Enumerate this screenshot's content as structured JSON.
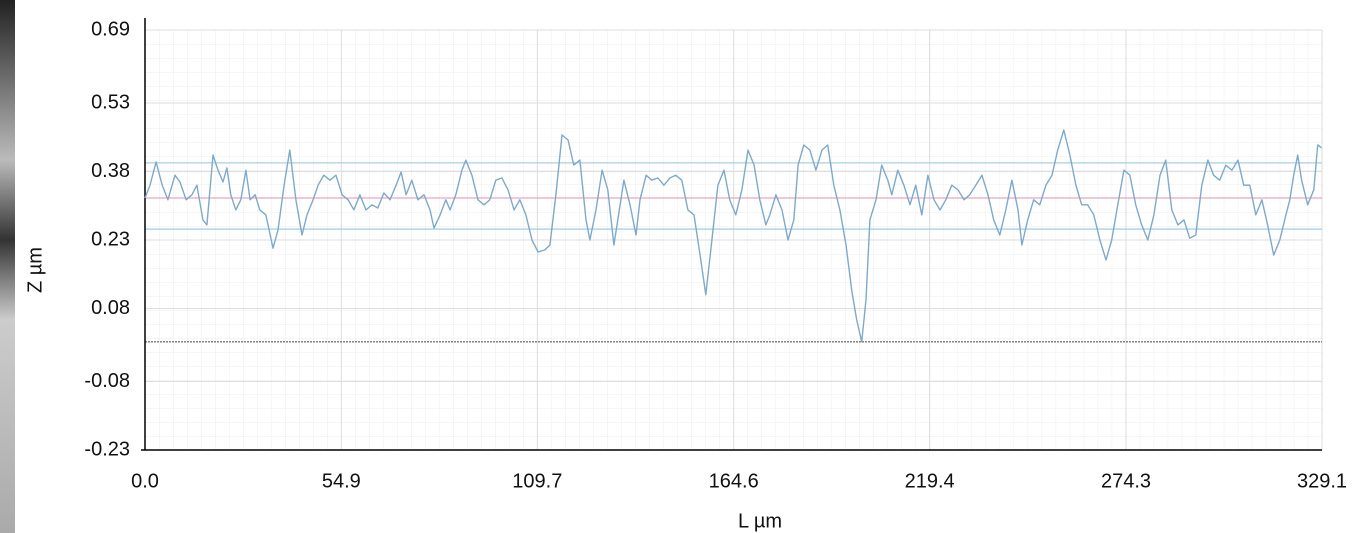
{
  "chart_data": {
    "type": "line",
    "x_label": "L µm",
    "y_label": "Z µm",
    "xlim": [
      0,
      329.1
    ],
    "ylim": [
      -0.23,
      0.69
    ],
    "xticks": [
      {
        "value": 0,
        "label": "0.0"
      },
      54.9,
      109.7,
      164.6,
      219.4,
      274.3,
      329.1
    ],
    "yticks": [
      -0.23,
      -0.08,
      0.08,
      0.23,
      0.38,
      0.53,
      0.69
    ],
    "grid": true,
    "color": "#7fa9c9",
    "reference_lines": [
      {
        "value": 0.399,
        "color": "#a9cfe6",
        "dash": false
      },
      {
        "value": 0.322,
        "color": "#e6a6c4",
        "dash": false
      },
      {
        "value": 0.254,
        "color": "#a9cfe6",
        "dash": false
      },
      {
        "value": 0.007,
        "color": "#777777",
        "dash": true
      }
    ],
    "x": [
      0,
      1.4,
      3.1,
      4.8,
      6.4,
      8.4,
      9.8,
      11.5,
      13.1,
      14.5,
      16.2,
      17.3,
      19.0,
      20.4,
      21.8,
      22.9,
      24.0,
      25.4,
      26.8,
      28.2,
      29.4,
      30.8,
      32.1,
      33.8,
      35.8,
      37.2,
      38.9,
      40.5,
      42.2,
      43.9,
      45.3,
      47.0,
      48.4,
      50.0,
      51.7,
      53.4,
      55.1,
      56.8,
      58.4,
      60.1,
      61.8,
      63.5,
      65.1,
      66.8,
      68.5,
      70.2,
      71.6,
      73.0,
      74.6,
      76.3,
      78.0,
      79.7,
      80.8,
      82.5,
      84.1,
      85.3,
      86.9,
      88.6,
      89.7,
      91.4,
      93.1,
      94.8,
      96.4,
      98.1,
      99.8,
      101.5,
      103.2,
      104.8,
      106.5,
      108.2,
      109.9,
      111.8,
      113.2,
      114.9,
      116.6,
      118.3,
      119.9,
      121.6,
      123.3,
      124.4,
      126.1,
      127.8,
      129.4,
      131.1,
      132.2,
      133.9,
      135.6,
      137.3,
      138.4,
      140.1,
      141.7,
      143.4,
      145.1,
      146.8,
      148.4,
      150.1,
      151.8,
      153.5,
      155.2,
      156.8,
      158.5,
      160.2,
      161.9,
      163.5,
      165.2,
      166.9,
      168.6,
      170.3,
      171.9,
      173.6,
      174.7,
      176.4,
      178.1,
      179.8,
      181.4,
      182.6,
      184.2,
      185.9,
      187.6,
      189.3,
      190.9,
      192.6,
      194.3,
      196.0,
      197.6,
      199.0,
      200.4,
      201.6,
      202.7,
      204.4,
      206.0,
      207.7,
      208.8,
      210.5,
      212.2,
      213.9,
      215.5,
      217.2,
      218.9,
      220.6,
      222.3,
      223.9,
      225.6,
      227.3,
      229.0,
      230.6,
      232.3,
      234.0,
      235.7,
      237.3,
      239.0,
      240.7,
      242.4,
      244.1,
      245.2,
      246.8,
      248.5,
      250.2,
      251.9,
      253.6,
      255.2,
      256.9,
      258.6,
      260.3,
      261.9,
      263.6,
      265.3,
      267.0,
      268.7,
      270.3,
      272.0,
      273.7,
      275.4,
      277.0,
      278.7,
      280.4,
      282.1,
      283.8,
      285.4,
      287.1,
      288.8,
      290.5,
      292.1,
      293.8,
      295.5,
      297.2,
      298.8,
      300.5,
      302.2,
      303.9,
      305.6,
      307.2,
      308.9,
      310.6,
      312.3,
      313.9,
      315.6,
      317.3,
      319.0,
      320.1,
      321.2,
      322.3,
      323.4,
      325.1,
      326.8,
      327.9,
      329.0
    ],
    "values": [
      0.322,
      0.35,
      0.401,
      0.35,
      0.318,
      0.372,
      0.357,
      0.318,
      0.329,
      0.35,
      0.274,
      0.263,
      0.416,
      0.383,
      0.357,
      0.388,
      0.329,
      0.296,
      0.318,
      0.383,
      0.318,
      0.329,
      0.296,
      0.285,
      0.212,
      0.252,
      0.35,
      0.427,
      0.318,
      0.241,
      0.285,
      0.318,
      0.35,
      0.372,
      0.361,
      0.372,
      0.329,
      0.318,
      0.296,
      0.329,
      0.296,
      0.307,
      0.3,
      0.333,
      0.318,
      0.35,
      0.379,
      0.329,
      0.361,
      0.318,
      0.329,
      0.296,
      0.256,
      0.285,
      0.318,
      0.296,
      0.329,
      0.383,
      0.405,
      0.372,
      0.318,
      0.307,
      0.318,
      0.361,
      0.366,
      0.34,
      0.296,
      0.318,
      0.285,
      0.23,
      0.204,
      0.208,
      0.219,
      0.329,
      0.46,
      0.449,
      0.394,
      0.405,
      0.274,
      0.23,
      0.296,
      0.383,
      0.34,
      0.219,
      0.274,
      0.361,
      0.307,
      0.241,
      0.318,
      0.372,
      0.361,
      0.366,
      0.35,
      0.366,
      0.372,
      0.361,
      0.296,
      0.285,
      0.197,
      0.11,
      0.23,
      0.35,
      0.383,
      0.318,
      0.285,
      0.34,
      0.427,
      0.394,
      0.318,
      0.263,
      0.285,
      0.329,
      0.296,
      0.23,
      0.274,
      0.394,
      0.438,
      0.427,
      0.383,
      0.427,
      0.438,
      0.35,
      0.296,
      0.219,
      0.12,
      0.055,
      0.007,
      0.099,
      0.274,
      0.318,
      0.394,
      0.361,
      0.329,
      0.383,
      0.35,
      0.307,
      0.35,
      0.285,
      0.372,
      0.318,
      0.296,
      0.318,
      0.35,
      0.34,
      0.318,
      0.329,
      0.35,
      0.372,
      0.329,
      0.274,
      0.241,
      0.296,
      0.361,
      0.296,
      0.219,
      0.274,
      0.318,
      0.307,
      0.35,
      0.372,
      0.427,
      0.471,
      0.416,
      0.35,
      0.307,
      0.307,
      0.285,
      0.23,
      0.186,
      0.23,
      0.307,
      0.383,
      0.372,
      0.307,
      0.263,
      0.23,
      0.285,
      0.372,
      0.405,
      0.296,
      0.263,
      0.274,
      0.234,
      0.241,
      0.35,
      0.405,
      0.372,
      0.361,
      0.394,
      0.383,
      0.405,
      0.35,
      0.35,
      0.285,
      0.318,
      0.263,
      0.197,
      0.23,
      0.285,
      0.318,
      0.372,
      0.416,
      0.361,
      0.307,
      0.34,
      0.438,
      0.432
    ]
  }
}
